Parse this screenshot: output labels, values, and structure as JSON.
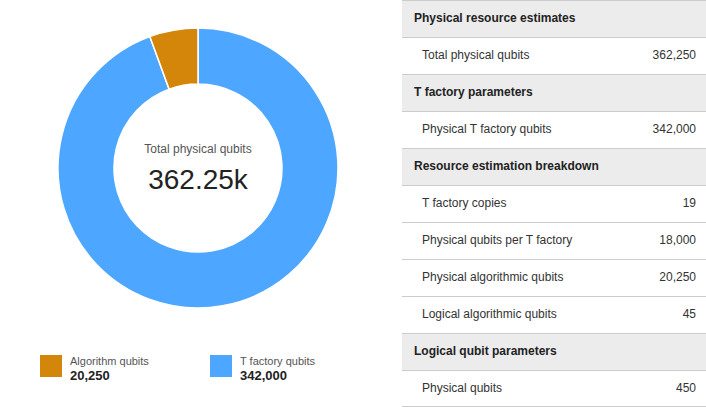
{
  "chart_data": [
    {
      "type": "pie",
      "categories": [
        "T factory qubits",
        "Algorithm qubits"
      ],
      "values": [
        342000,
        20250
      ],
      "value_labels": [
        "342,000",
        "20,250"
      ],
      "colors": [
        "#4da6ff",
        "#d4860a"
      ],
      "legend": "bottom",
      "annotations": [
        "Total physical qubits",
        "362.25k"
      ]
    },
    {
      "type": "table",
      "sections": [
        {
          "header": "Physical resource estimates",
          "rows": [
            {
              "label": "Total physical qubits",
              "value": "362,250"
            }
          ]
        },
        {
          "header": "T factory parameters",
          "rows": [
            {
              "label": "Physical T factory qubits",
              "value": "342,000"
            }
          ]
        },
        {
          "header": "Resource estimation breakdown",
          "rows": [
            {
              "label": "T factory copies",
              "value": "19"
            },
            {
              "label": "Physical qubits per T factory",
              "value": "18,000"
            },
            {
              "label": "Physical algorithmic qubits",
              "value": "20,250"
            },
            {
              "label": "Logical algorithmic qubits",
              "value": "45"
            }
          ]
        },
        {
          "header": "Logical qubit parameters",
          "rows": [
            {
              "label": "Physical qubits",
              "value": "450"
            }
          ]
        }
      ]
    }
  ]
}
